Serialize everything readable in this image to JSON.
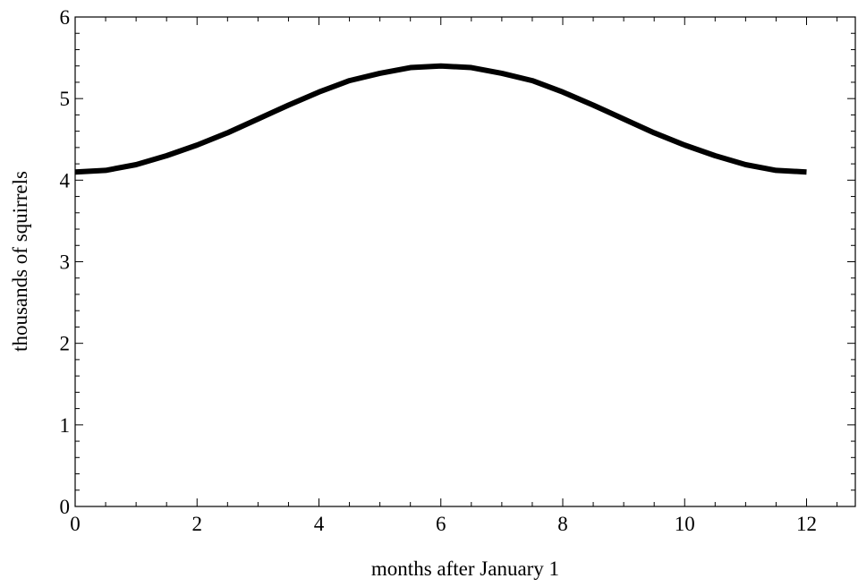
{
  "chart_data": {
    "type": "line",
    "title": "",
    "xlabel": "months after January 1",
    "ylabel": "thousands of squirrels",
    "xlim": [
      0,
      12.8
    ],
    "ylim": [
      0,
      6
    ],
    "x_ticks": [
      0,
      2,
      4,
      6,
      8,
      10,
      12
    ],
    "y_ticks": [
      0,
      1,
      2,
      3,
      4,
      5,
      6
    ],
    "x_minor_step": 0.5,
    "y_minor_step": 0.2,
    "grid": false,
    "series": [
      {
        "color": "#000000",
        "x": [
          0,
          0.5,
          1,
          1.5,
          2,
          2.5,
          3,
          3.5,
          4,
          4.5,
          5,
          5.5,
          6,
          6.5,
          7,
          7.5,
          8,
          8.5,
          9,
          9.5,
          10,
          10.5,
          11,
          11.5,
          12
        ],
        "y": [
          4.1,
          4.12,
          4.19,
          4.3,
          4.43,
          4.58,
          4.75,
          4.92,
          5.08,
          5.22,
          5.31,
          5.38,
          5.4,
          5.38,
          5.31,
          5.22,
          5.08,
          4.92,
          4.75,
          4.58,
          4.43,
          4.3,
          4.19,
          4.12,
          4.1
        ]
      }
    ]
  }
}
